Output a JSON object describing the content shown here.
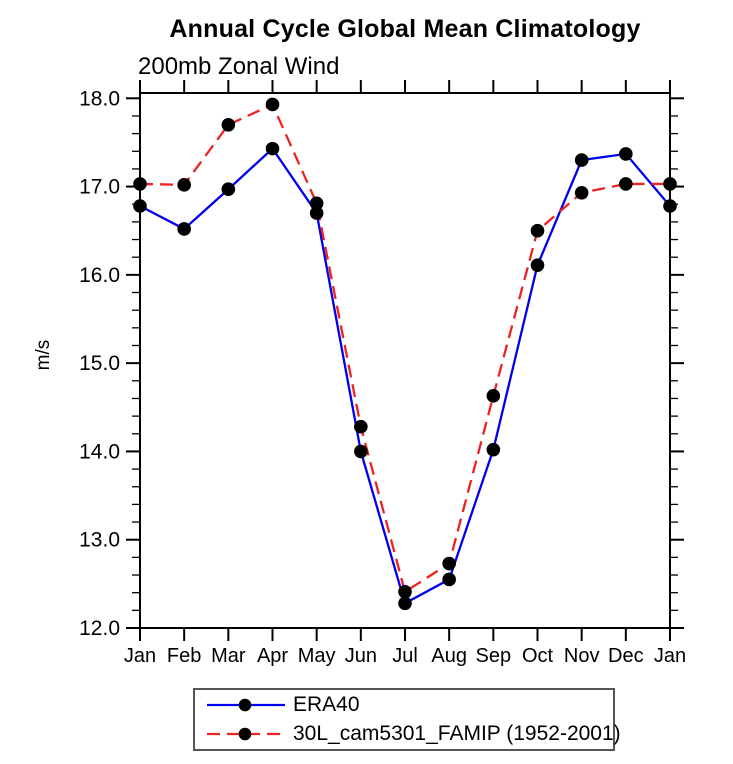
{
  "chart_data": {
    "type": "line",
    "title": "Annual Cycle Global Mean Climatology",
    "subtitle": "200mb Zonal Wind",
    "ylabel": "m/s",
    "x_categories": [
      "Jan",
      "Feb",
      "Mar",
      "Apr",
      "May",
      "Jun",
      "Jul",
      "Aug",
      "Sep",
      "Oct",
      "Nov",
      "Dec",
      "Jan"
    ],
    "y_tick_labels": [
      "12.0",
      "13.0",
      "14.0",
      "15.0",
      "16.0",
      "17.0",
      "18.0"
    ],
    "y_ticks": [
      12.0,
      13.0,
      14.0,
      15.0,
      16.0,
      17.0,
      18.0
    ],
    "ylim": [
      12.0,
      18.06
    ],
    "minor_tick_interval": 0.2,
    "grid": false,
    "legend_position": "bottom",
    "axis_color": "#000000",
    "marker_color": "#000000",
    "series": [
      {
        "name": "ERA40",
        "color": "#0000ee",
        "style": "solid",
        "marker": "circle",
        "values": [
          16.78,
          16.52,
          16.97,
          17.43,
          16.7,
          14.0,
          12.28,
          12.55,
          14.02,
          16.11,
          17.3,
          17.37,
          16.78
        ]
      },
      {
        "name": "30L_cam5301_FAMIP (1952-2001)",
        "color": "#ee2222",
        "style": "dashed",
        "marker": "circle",
        "values": [
          17.03,
          17.02,
          17.7,
          17.93,
          16.81,
          14.28,
          12.41,
          12.73,
          14.63,
          16.5,
          16.93,
          17.03,
          17.03
        ]
      }
    ]
  }
}
